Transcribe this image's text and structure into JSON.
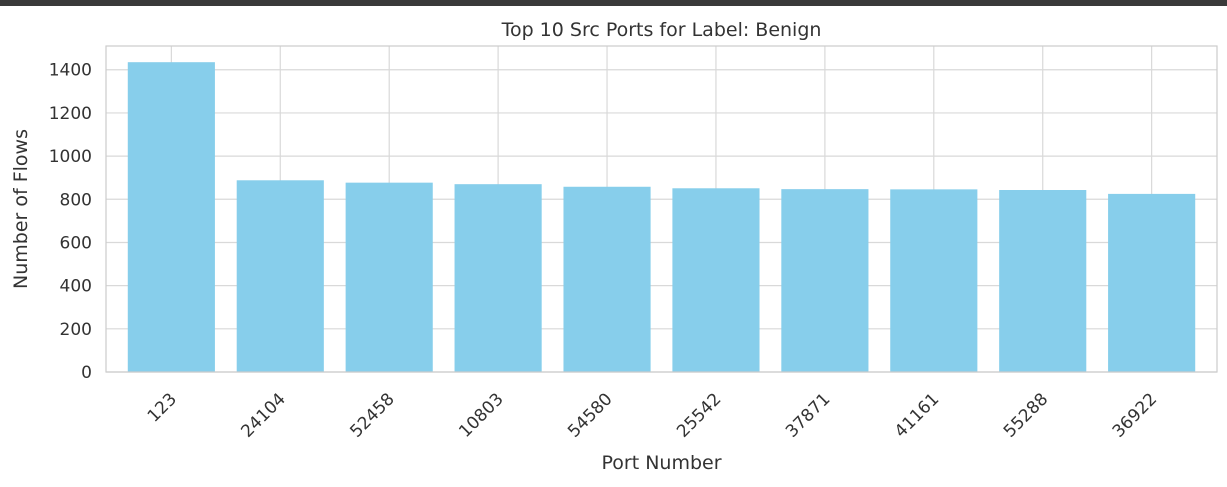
{
  "chart_data": {
    "type": "bar",
    "title": "Top 10 Src Ports for Label: Benign",
    "xlabel": "Port Number",
    "ylabel": "Number of Flows",
    "categories": [
      "123",
      "24104",
      "52458",
      "10803",
      "54580",
      "25542",
      "37871",
      "41161",
      "55288",
      "36922"
    ],
    "values": [
      1435,
      888,
      877,
      870,
      858,
      851,
      847,
      846,
      843,
      825
    ],
    "ylim": [
      0,
      1510
    ],
    "yticks": [
      0,
      200,
      400,
      600,
      800,
      1000,
      1200,
      1400
    ],
    "grid": true,
    "bar_color": "#87ceeb",
    "x_tick_rotation": "45 degrees"
  }
}
